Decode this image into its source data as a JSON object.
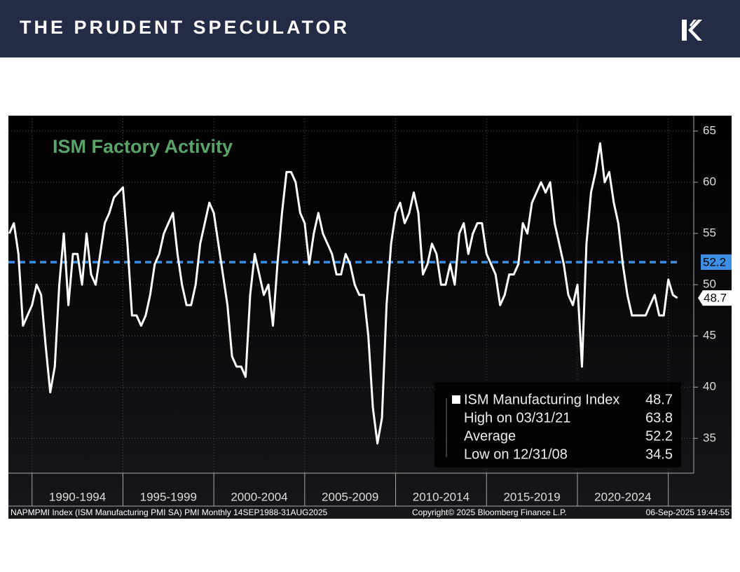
{
  "header": {
    "title": "THE PRUDENT SPECULATOR"
  },
  "chart_data": {
    "type": "line",
    "title": "ISM Factory Activity",
    "categories": [
      "1990-1994",
      "1995-1999",
      "2000-2004",
      "2005-2009",
      "2010-2014",
      "2015-2019",
      "2020-2024"
    ],
    "xticks": [
      1990,
      1995,
      2000,
      2005,
      2010,
      2015,
      2020,
      2025
    ],
    "xlim": [
      1988.7,
      2026.4
    ],
    "ylim": [
      31.6,
      66.5
    ],
    "yticks": [
      35,
      40,
      45,
      50,
      55,
      60,
      65
    ],
    "x": [
      1988.75,
      1989,
      1989.25,
      1989.5,
      1989.75,
      1990,
      1990.25,
      1990.5,
      1990.75,
      1991,
      1991.25,
      1991.5,
      1991.75,
      1992,
      1992.25,
      1992.5,
      1992.75,
      1993,
      1993.25,
      1993.5,
      1993.75,
      1994,
      1994.25,
      1994.5,
      1994.75,
      1995,
      1995.25,
      1995.5,
      1995.75,
      1996,
      1996.25,
      1996.5,
      1996.75,
      1997,
      1997.25,
      1997.5,
      1997.75,
      1998,
      1998.25,
      1998.5,
      1998.75,
      1999,
      1999.25,
      1999.5,
      1999.75,
      2000,
      2000.25,
      2000.5,
      2000.75,
      2001,
      2001.25,
      2001.5,
      2001.75,
      2002,
      2002.25,
      2002.5,
      2002.75,
      2003,
      2003.25,
      2003.5,
      2003.75,
      2004,
      2004.25,
      2004.5,
      2004.75,
      2005,
      2005.25,
      2005.5,
      2005.75,
      2006,
      2006.25,
      2006.5,
      2006.75,
      2007,
      2007.25,
      2007.5,
      2007.75,
      2008,
      2008.25,
      2008.5,
      2008.75,
      2009,
      2009.25,
      2009.5,
      2009.75,
      2010,
      2010.25,
      2010.5,
      2010.75,
      2011,
      2011.25,
      2011.5,
      2011.75,
      2012,
      2012.25,
      2012.5,
      2012.75,
      2013,
      2013.25,
      2013.5,
      2013.75,
      2014,
      2014.25,
      2014.5,
      2014.75,
      2015,
      2015.25,
      2015.5,
      2015.75,
      2016,
      2016.25,
      2016.5,
      2016.75,
      2017,
      2017.25,
      2017.5,
      2017.75,
      2018,
      2018.25,
      2018.5,
      2018.75,
      2019,
      2019.25,
      2019.5,
      2019.75,
      2020,
      2020.25,
      2020.5,
      2020.75,
      2021,
      2021.25,
      2021.5,
      2021.75,
      2022,
      2022.25,
      2022.5,
      2022.75,
      2023,
      2023.25,
      2023.5,
      2023.75,
      2024,
      2024.25,
      2024.5,
      2024.75,
      2025,
      2025.25,
      2025.5
    ],
    "series": [
      {
        "name": "ISM Manufacturing Index",
        "color": "#ffffff",
        "values": [
          55,
          56,
          53,
          46,
          47,
          48,
          50,
          49,
          44,
          39.5,
          42,
          50,
          55,
          48,
          53,
          53,
          50,
          55,
          51,
          50,
          53,
          56,
          57,
          58.5,
          59,
          59.5,
          54,
          47,
          47,
          46,
          47,
          49,
          52,
          53,
          55,
          56,
          57,
          53,
          50,
          48,
          48,
          50,
          54,
          56,
          58,
          57,
          54,
          51,
          48,
          43,
          42,
          42,
          41,
          49,
          53,
          51,
          49,
          50,
          46,
          52,
          57,
          61,
          61,
          60,
          57,
          56,
          52,
          55,
          57,
          55,
          54,
          53,
          51,
          51,
          53,
          52,
          50,
          49,
          49,
          45,
          38,
          34.5,
          37,
          48,
          54,
          57,
          58,
          56,
          57,
          59,
          57,
          51,
          52,
          54,
          53,
          50,
          50,
          52,
          50,
          55,
          56,
          53,
          55,
          56,
          56,
          53,
          52,
          51,
          48,
          49,
          51,
          51,
          52,
          56,
          55,
          58,
          59,
          60,
          59,
          60,
          56,
          54,
          52,
          49,
          48,
          50,
          42,
          54,
          59,
          61,
          63.8,
          60,
          61,
          58,
          56,
          52,
          49,
          47,
          47,
          47,
          47,
          48,
          49,
          47,
          47,
          50.5,
          49,
          48.7
        ]
      }
    ],
    "average": {
      "value": 52.2,
      "color": "#3d8fe6"
    },
    "legend": [
      {
        "label": "ISM Manufacturing Index",
        "value": 48.7
      },
      {
        "label": "High on 03/31/21",
        "value": 63.8
      },
      {
        "label": "Average",
        "value": 52.2
      },
      {
        "label": "Low on 12/31/08",
        "value": 34.5
      }
    ],
    "footer": {
      "left": "NAPMPMI Index (ISM Manufacturing PMI SA) PMI  Monthly 14SEP1988-31AUG2025",
      "center": "Copyright© 2025 Bloomberg Finance L.P.",
      "right": "06-Sep-2025 19:44:55"
    }
  }
}
